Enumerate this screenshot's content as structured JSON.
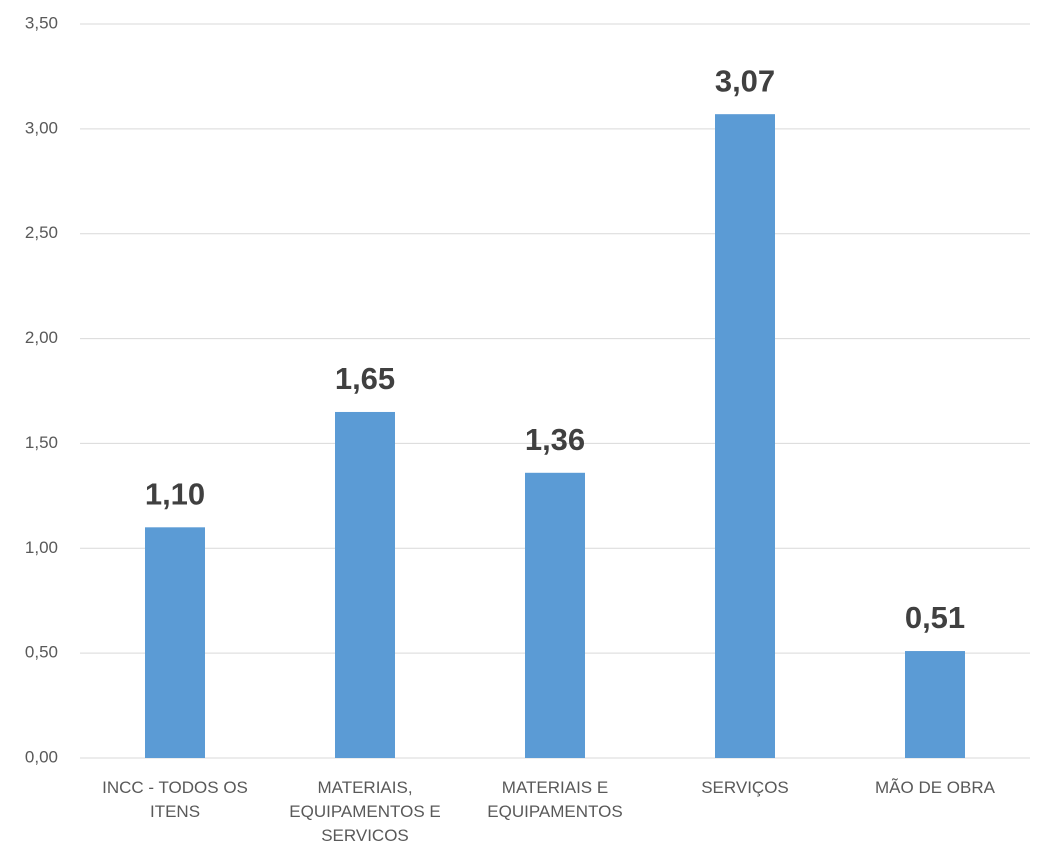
{
  "chart_data": {
    "type": "bar",
    "categories": [
      "INCC - TODOS OS ITENS",
      "MATERIAIS, EQUIPAMENTOS E SERVICOS",
      "MATERIAIS E EQUIPAMENTOS",
      "SERVIÇOS",
      "MÃO DE OBRA"
    ],
    "values": [
      1.1,
      1.65,
      1.36,
      3.07,
      0.51
    ],
    "value_labels": [
      "1,10",
      "1,65",
      "1,36",
      "3,07",
      "0,51"
    ],
    "color": "#5b9bd5",
    "ylim": [
      0,
      3.5
    ],
    "yticks": [
      {
        "value": 0,
        "label": "0,00"
      },
      {
        "value": 0.5,
        "label": "0,50"
      },
      {
        "value": 1,
        "label": "1,00"
      },
      {
        "value": 1.5,
        "label": "1,50"
      },
      {
        "value": 2,
        "label": "2,00"
      },
      {
        "value": 2.5,
        "label": "2,50"
      },
      {
        "value": 3,
        "label": "3,00"
      },
      {
        "value": 3.5,
        "label": "3,50"
      }
    ],
    "grid": true
  }
}
